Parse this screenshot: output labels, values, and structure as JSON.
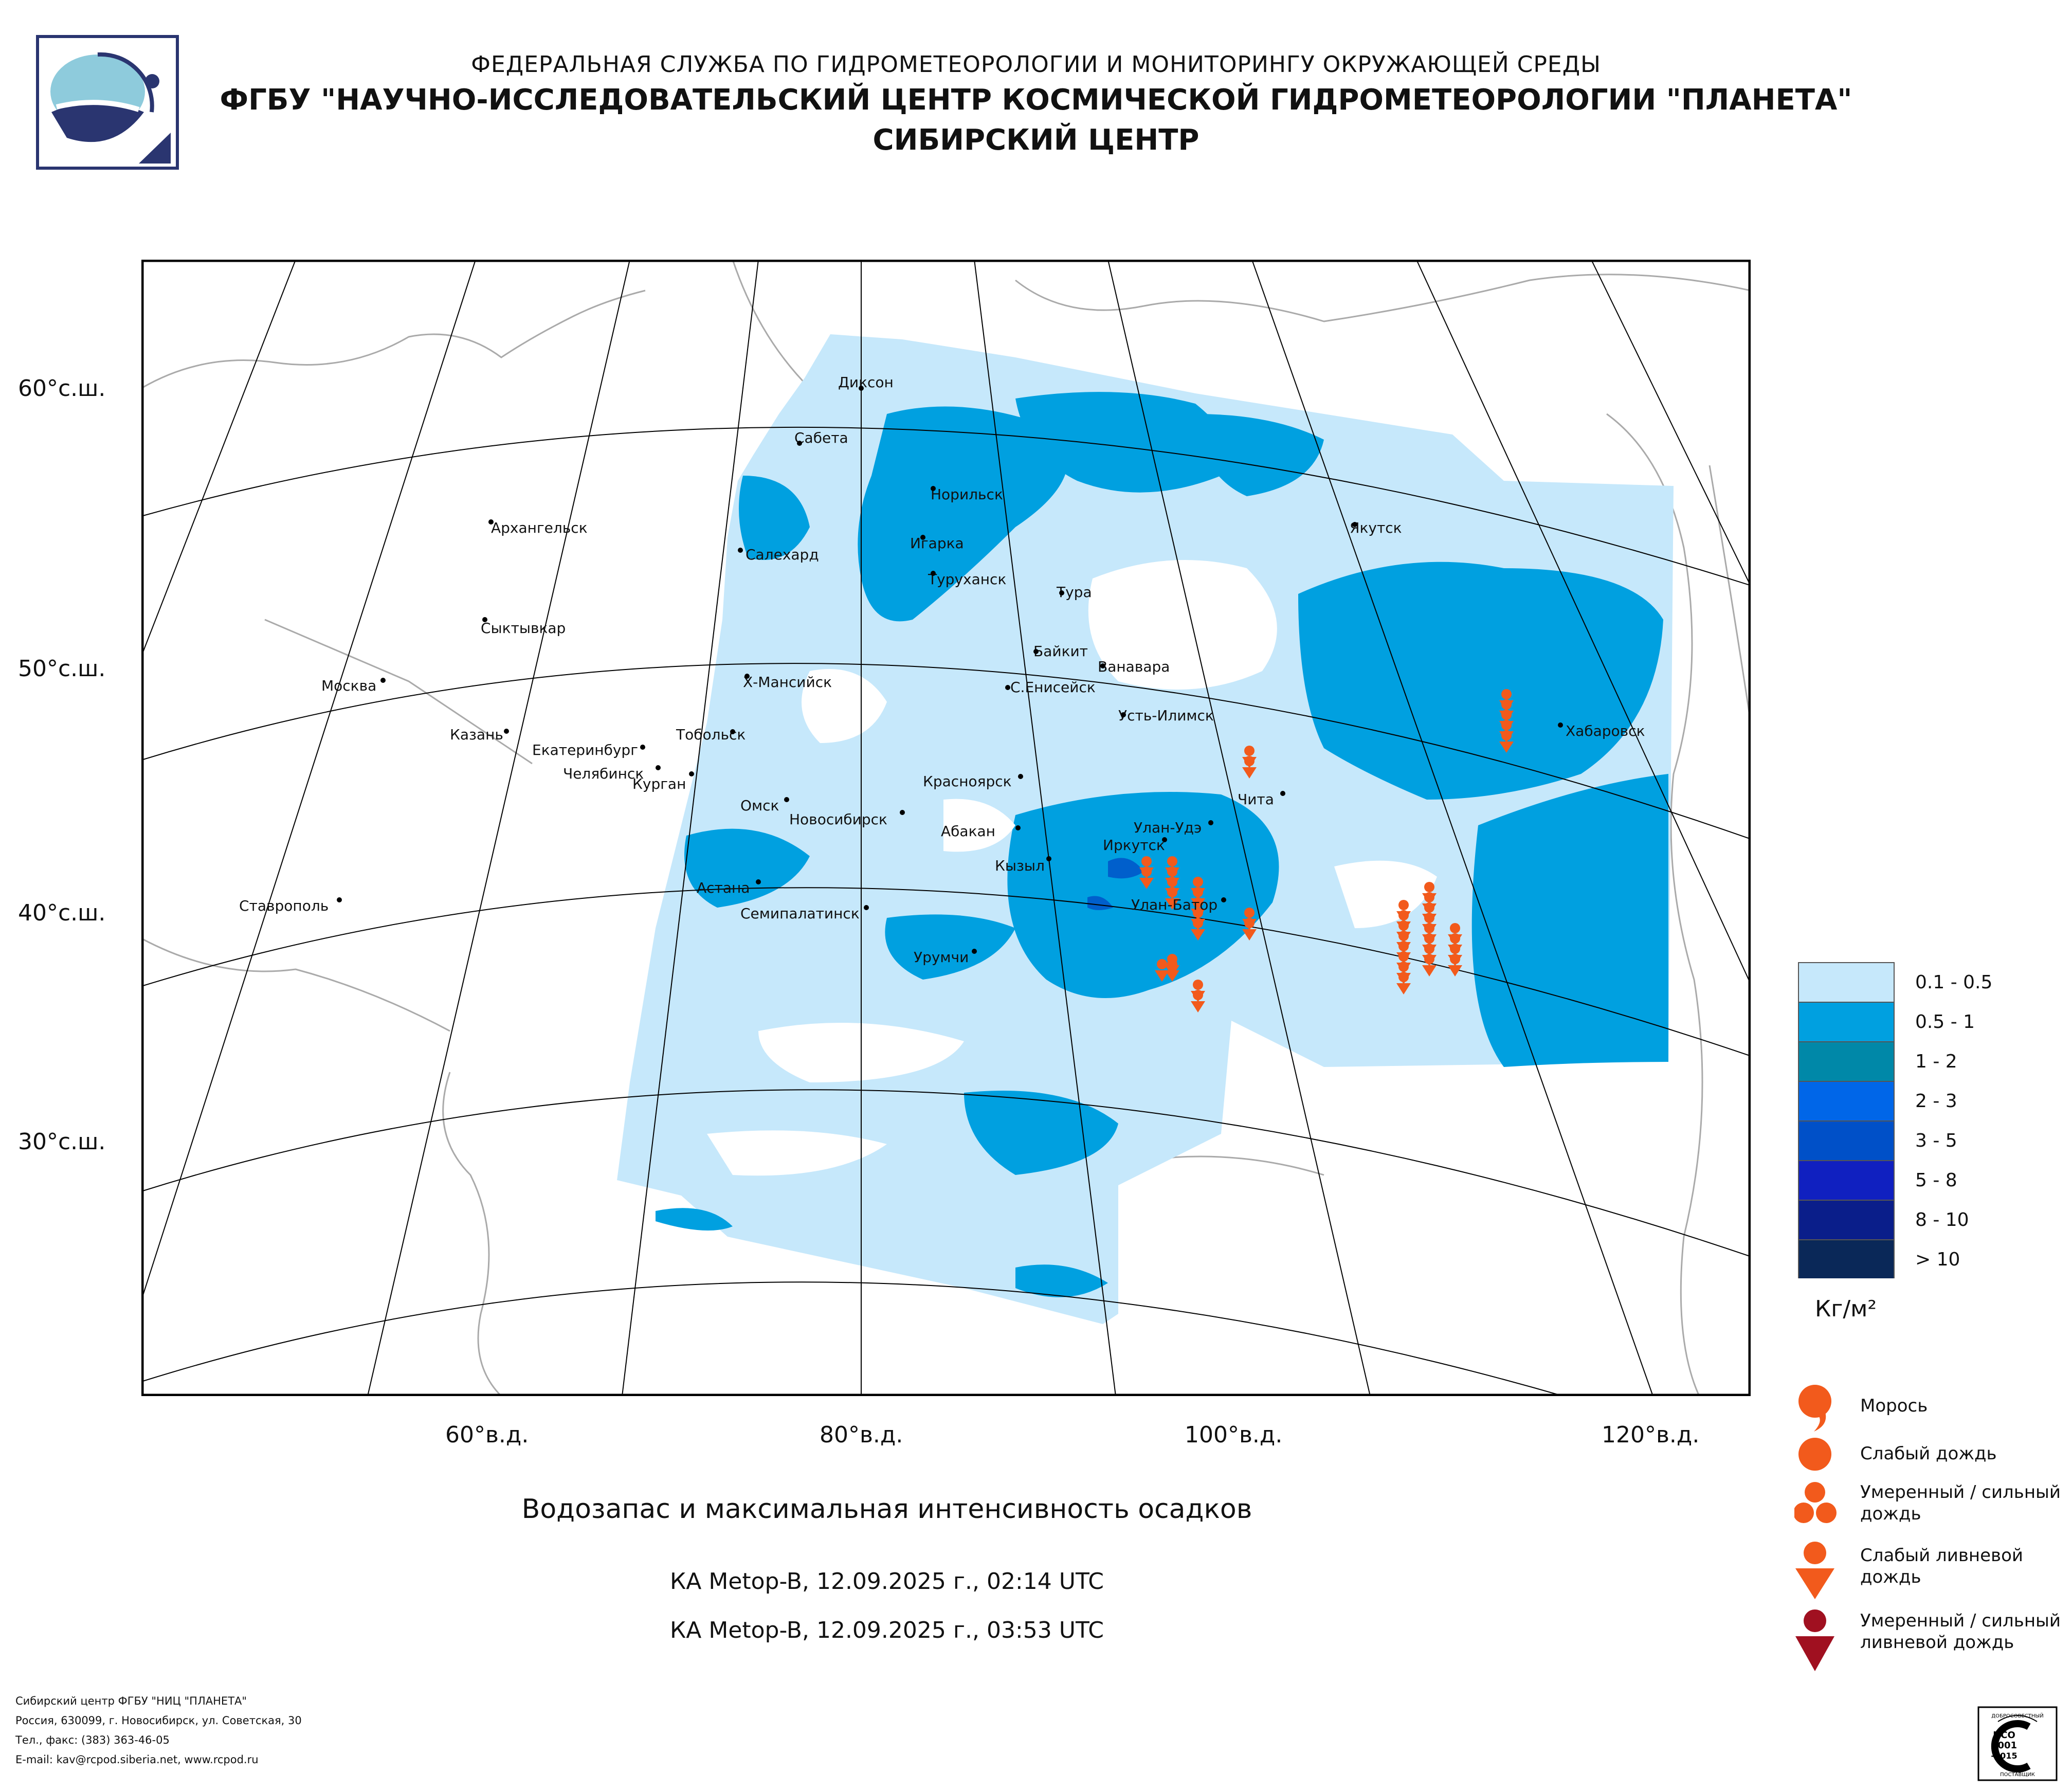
{
  "header": {
    "line1": "ФЕДЕРАЛЬНАЯ СЛУЖБА ПО ГИДРОМЕТЕОРОЛОГИИ И МОНИТОРИНГУ ОКРУЖАЮЩЕЙ СРЕДЫ",
    "line2": "ФГБУ \"НАУЧНО-ИССЛЕДОВАТЕЛЬСКИЙ ЦЕНТР КОСМИЧЕСКОЙ ГИДРОМЕТЕОРОЛОГИИ \"ПЛАНЕТА\"",
    "line3": "СИБИРСКИЙ ЦЕНТР"
  },
  "map": {
    "lat_labels": [
      "60°с.ш.",
      "50°с.ш.",
      "40°с.ш.",
      "30°с.ш."
    ],
    "lon_labels": [
      "60°в.д.",
      "80°в.д.",
      "100°в.д.",
      "120°в.д."
    ],
    "cities": [
      "Диксон",
      "Сабета",
      "Норильск",
      "Архангельск",
      "Салехард",
      "Игарка",
      "Туруханск",
      "Якутск",
      "Тура",
      "Сыктывкар",
      "Байкит",
      "Ванавара",
      "Х-Мансийск",
      "С.Енисейск",
      "Москва",
      "Усть-Илимск",
      "Хабаровск",
      "Казань",
      "Тобольск",
      "Екатеринбург",
      "Челябинск",
      "Курган",
      "Красноярск",
      "Чита",
      "Омск",
      "Новосибирск",
      "Абакан",
      "Улан-Удэ",
      "Иркутск",
      "Кызыл",
      "Астана",
      "Ставрополь",
      "Улан-Батор",
      "Семипалатинск",
      "Урумчи"
    ]
  },
  "legend": {
    "ranges": [
      "0.1 - 0.5",
      "0.5 - 1",
      "1 - 2",
      "2 - 3",
      "3 - 5",
      "5 - 8",
      "8 - 10",
      "> 10"
    ],
    "colors": [
      "#c6e8fb",
      "#00a0e0",
      "#0088a8",
      "#0066e8",
      "#0050c8",
      "#1020c0",
      "#0a1e8a",
      "#0a2858"
    ],
    "unit": "Кг/м²"
  },
  "precip_legend": {
    "drizzle": "Морось",
    "light_rain": "Слабый дождь",
    "moderate_rain_1": "Умеренный / сильный",
    "moderate_rain_2": "дождь",
    "light_shower_1": "Слабый ливневой",
    "light_shower_2": "дождь",
    "heavy_shower_1": "Умеренный / сильный",
    "heavy_shower_2": "ливневой дождь",
    "colors": {
      "orange": "#f25a1c",
      "dark_red": "#a01020"
    }
  },
  "title": "Водозапас и максимальная интенсивность осадков",
  "subtitle1": "КА Metop-B, 12.09.2025 г., 02:14 UTC",
  "subtitle2": "КА Metop-B, 12.09.2025 г., 03:53 UTC",
  "footer": {
    "line1": "Сибирский центр ФГБУ \"НИЦ \"ПЛАНЕТА\"",
    "line2": "Россия, 630099, г. Новосибирск, ул. Советская, 30",
    "line3": "Тел., факс: (383) 363-46-05",
    "line4": "E-mail: kav@rcpod.siberia.net, www.rcpod.ru"
  },
  "iso_badge": {
    "arc": "ДОБРОСОВЕСТНЫЙ",
    "l1": "ИСО",
    "l2": "9001",
    "l3": "-2015",
    "bottom": "ПОСТАВЩИК"
  }
}
